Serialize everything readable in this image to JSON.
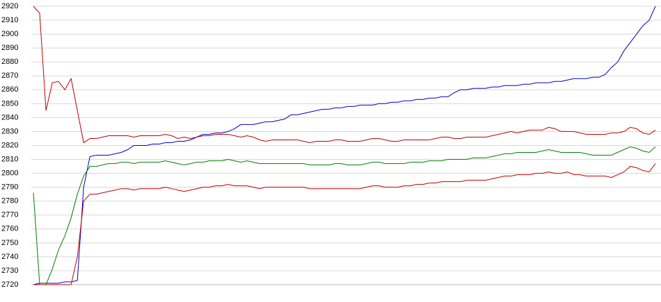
{
  "chart_data": {
    "type": "line",
    "categories": [
      null,
      null,
      null,
      null,
      null,
      null,
      null,
      null,
      null,
      null,
      null,
      null,
      null,
      null,
      null,
      null,
      null,
      null,
      null,
      null,
      null,
      null,
      null,
      null,
      null,
      null,
      null,
      null,
      null,
      null,
      null,
      null,
      null,
      null,
      null,
      null,
      null,
      null,
      null,
      null,
      null,
      null,
      null,
      null,
      null,
      null,
      null,
      null,
      null,
      null,
      null,
      null,
      null,
      null,
      null,
      null,
      null,
      null,
      null,
      null,
      null,
      null,
      null,
      null,
      null,
      null,
      null,
      null,
      null,
      null,
      null,
      null,
      null,
      null,
      null,
      null,
      null,
      null,
      null,
      null,
      null,
      null,
      null,
      null,
      null,
      null,
      null,
      null,
      null,
      null,
      null,
      null,
      null,
      null,
      null,
      null,
      null,
      null,
      null,
      null
    ],
    "series": [
      {
        "color": "#0000c8",
        "values": [
          2720,
          2721,
          2721,
          2721,
          2721,
          2722,
          2722,
          2723,
          2790,
          2812,
          2813,
          2813,
          2813,
          2814,
          2815,
          2817,
          2820,
          2820,
          2820,
          2821,
          2821,
          2822,
          2822,
          2823,
          2823,
          2824,
          2826,
          2828,
          2828,
          2829,
          2829,
          2830,
          2832,
          2835,
          2835,
          2835,
          2836,
          2837,
          2837,
          2838,
          2839,
          2842,
          2842,
          2843,
          2844,
          2845,
          2846,
          2846,
          2847,
          2847,
          2848,
          2848,
          2849,
          2849,
          2849,
          2850,
          2850,
          2851,
          2851,
          2852,
          2852,
          2853,
          2853,
          2854,
          2854,
          2855,
          2855,
          2858,
          2860,
          2860,
          2861,
          2861,
          2861,
          2862,
          2862,
          2863,
          2863,
          2863,
          2864,
          2864,
          2865,
          2865,
          2865,
          2866,
          2866,
          2867,
          2868,
          2868,
          2868,
          2869,
          2869,
          2871,
          2876,
          2880,
          2888,
          2894,
          2900,
          2906,
          2910,
          2920
        ]
      },
      {
        "color": "#008000",
        "values": [
          2786,
          2720,
          2720,
          2731,
          2745,
          2755,
          2768,
          2785,
          2798,
          2805,
          2805,
          2806,
          2807,
          2807,
          2808,
          2808,
          2807,
          2808,
          2808,
          2808,
          2808,
          2809,
          2808,
          2807,
          2806,
          2807,
          2808,
          2808,
          2809,
          2809,
          2809,
          2810,
          2809,
          2808,
          2809,
          2808,
          2807,
          2807,
          2807,
          2807,
          2807,
          2807,
          2807,
          2807,
          2806,
          2806,
          2806,
          2806,
          2807,
          2807,
          2806,
          2806,
          2806,
          2807,
          2808,
          2808,
          2807,
          2807,
          2807,
          2807,
          2808,
          2808,
          2808,
          2809,
          2809,
          2809,
          2810,
          2810,
          2810,
          2810,
          2811,
          2811,
          2811,
          2812,
          2813,
          2814,
          2814,
          2815,
          2815,
          2815,
          2815,
          2816,
          2817,
          2816,
          2815,
          2815,
          2815,
          2815,
          2814,
          2813,
          2813,
          2813,
          2813,
          2815,
          2817,
          2819,
          2818,
          2816,
          2815,
          2819
        ]
      },
      {
        "color": "#c00000",
        "values": [
          2920,
          2915,
          2845,
          2865,
          2866,
          2860,
          2868,
          2845,
          2822,
          2825,
          2825,
          2826,
          2827,
          2827,
          2827,
          2827,
          2826,
          2827,
          2827,
          2827,
          2827,
          2828,
          2827,
          2825,
          2826,
          2825,
          2826,
          2827,
          2827,
          2828,
          2828,
          2828,
          2827,
          2826,
          2827,
          2826,
          2824,
          2823,
          2824,
          2824,
          2824,
          2824,
          2824,
          2823,
          2822,
          2823,
          2823,
          2823,
          2824,
          2824,
          2823,
          2823,
          2823,
          2824,
          2825,
          2825,
          2824,
          2823,
          2823,
          2824,
          2824,
          2824,
          2824,
          2824,
          2825,
          2826,
          2826,
          2825,
          2825,
          2826,
          2826,
          2826,
          2826,
          2827,
          2828,
          2829,
          2830,
          2829,
          2830,
          2831,
          2831,
          2831,
          2833,
          2832,
          2830,
          2830,
          2830,
          2829,
          2828,
          2828,
          2828,
          2828,
          2829,
          2829,
          2830,
          2833,
          2832,
          2829,
          2828,
          2831
        ]
      },
      {
        "color": "#c00000",
        "values": [
          2720,
          2720,
          2720,
          2720,
          2720,
          2720,
          2720,
          2740,
          2780,
          2785,
          2785,
          2786,
          2787,
          2788,
          2789,
          2789,
          2788,
          2789,
          2789,
          2789,
          2789,
          2790,
          2789,
          2788,
          2787,
          2788,
          2789,
          2790,
          2790,
          2791,
          2791,
          2792,
          2791,
          2791,
          2791,
          2790,
          2789,
          2790,
          2790,
          2790,
          2790,
          2790,
          2790,
          2790,
          2789,
          2789,
          2789,
          2789,
          2789,
          2789,
          2789,
          2789,
          2789,
          2790,
          2791,
          2791,
          2790,
          2790,
          2790,
          2791,
          2791,
          2792,
          2792,
          2793,
          2793,
          2794,
          2794,
          2794,
          2794,
          2795,
          2795,
          2795,
          2795,
          2796,
          2797,
          2798,
          2798,
          2799,
          2799,
          2799,
          2800,
          2800,
          2801,
          2800,
          2800,
          2801,
          2799,
          2799,
          2798,
          2798,
          2798,
          2798,
          2797,
          2799,
          2801,
          2805,
          2804,
          2802,
          2801,
          2807
        ]
      }
    ],
    "ylim": [
      2720,
      2920
    ],
    "yticks": [
      2720,
      2730,
      2740,
      2750,
      2760,
      2770,
      2780,
      2790,
      2800,
      2810,
      2820,
      2830,
      2840,
      2850,
      2860,
      2870,
      2880,
      2890,
      2900,
      2910,
      2920
    ],
    "grid": true
  }
}
